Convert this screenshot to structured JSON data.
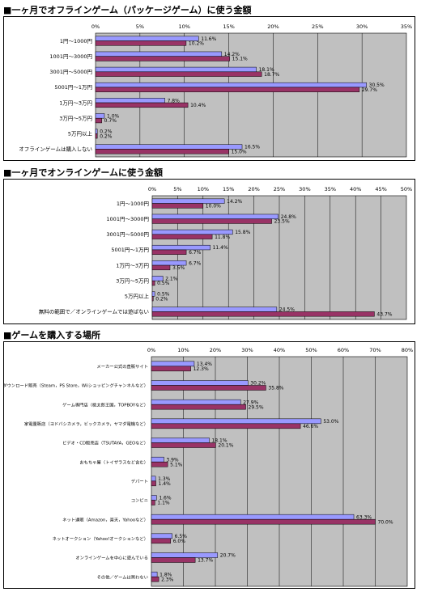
{
  "chart_data": [
    {
      "type": "bar",
      "title": "■一ヶ月でオフラインゲーム（パッケージゲーム）に使う金額",
      "orientation": "horizontal",
      "categories": [
        "1円～1000円",
        "1001円～3000円",
        "3001円～5000円",
        "5001円～1万円",
        "1万円～3万円",
        "3万円～5万円",
        "5万円以上",
        "オフラインゲームは購入しない"
      ],
      "series": [
        {
          "values": [
            11.6,
            14.2,
            18.1,
            30.5,
            7.8,
            1.0,
            0.2,
            16.5
          ],
          "labels": [
            "11.6%",
            "14.2%",
            "18.1%",
            "30.5%",
            "7.8%",
            "1.0%",
            "0.2%",
            "16.5%"
          ],
          "color": "#9999ff"
        },
        {
          "values": [
            10.2,
            15.1,
            18.7,
            29.7,
            10.4,
            0.7,
            0.2,
            15.0
          ],
          "labels": [
            "10.2%",
            "15.1%",
            "18.7%",
            "29.7%",
            "10.4%",
            "0.7%",
            "0.2%",
            "15.0%"
          ],
          "color": "#993366"
        }
      ],
      "xlim": [
        0,
        35
      ],
      "ticks": [
        "0%",
        "5%",
        "10%",
        "15%",
        "20%",
        "25%",
        "30%",
        "35%"
      ],
      "plot_background": "#c0c0c0",
      "grid": true
    },
    {
      "type": "bar",
      "title": "■一ヶ月でオンラインゲームに使う金額",
      "orientation": "horizontal",
      "categories": [
        "1円～1000円",
        "1001円～3000円",
        "3001円～5000円",
        "5001円～1万円",
        "1万円～3万円",
        "3万円～5万円",
        "5万円以上",
        "無料の範囲で／オンラインゲームでは遊ばない"
      ],
      "series": [
        {
          "values": [
            14.2,
            24.8,
            15.8,
            11.4,
            6.7,
            2.1,
            0.5,
            24.5
          ],
          "labels": [
            "14.2%",
            "24.8%",
            "15.8%",
            "11.4%",
            "6.7%",
            "2.1%",
            "0.5%",
            "24.5%"
          ],
          "color": "#9999ff"
        },
        {
          "values": [
            10.0,
            23.5,
            11.8,
            6.7,
            3.5,
            0.5,
            0.2,
            43.7
          ],
          "labels": [
            "10.0%",
            "23.5%",
            "11.8%",
            "6.7%",
            "3.5%",
            "0.5%",
            "0.2%",
            "43.7%"
          ],
          "color": "#993366"
        }
      ],
      "xlim": [
        0,
        50
      ],
      "ticks": [
        "0%",
        "5%",
        "10%",
        "15%",
        "20%",
        "25%",
        "30%",
        "35%",
        "40%",
        "45%",
        "50%"
      ],
      "plot_background": "#c0c0c0",
      "grid": true
    },
    {
      "type": "bar",
      "title": "■ゲームを購入する場所",
      "orientation": "horizontal",
      "categories": [
        "メーカー公式の直販サイト",
        "ダウンロード販売（Steam，PS Store，Wiiショッピングチャンネルなど）",
        "ゲーム専門店（桃太郎王国，TOPBOYなど）",
        "家電量販店（ヨドバシカメラ，ビックカメラ，ヤマダ電機など）",
        "ビデオ・CD販売店（TSUTAYA，GEOなど）",
        "おもちゃ屋（トイザラスなど含む）",
        "デパート",
        "コンビニ",
        "ネット通販（Amazon，楽天，Yahooなど）",
        "ネットオークション（Yahoo!オークションなど）",
        "オンラインゲームを中心に遊んでいる",
        "その他／ゲームは買わない"
      ],
      "series": [
        {
          "values": [
            13.4,
            30.2,
            27.9,
            53.0,
            18.1,
            3.9,
            1.3,
            1.6,
            63.3,
            6.5,
            20.7,
            1.8
          ],
          "labels": [
            "13.4%",
            "30.2%",
            "27.9%",
            "53.0%",
            "18.1%",
            "3.9%",
            "1.3%",
            "1.6%",
            "63.3%",
            "6.5%",
            "20.7%",
            "1.8%"
          ],
          "color": "#9999ff"
        },
        {
          "values": [
            12.3,
            35.8,
            29.5,
            46.6,
            20.1,
            5.1,
            1.4,
            1.1,
            70.0,
            6.0,
            13.7,
            2.3
          ],
          "labels": [
            "12.3%",
            "35.8%",
            "29.5%",
            "46.6%",
            "20.1%",
            "5.1%",
            "1.4%",
            "1.1%",
            "70.0%",
            "6.0%",
            "13.7%",
            "2.3%"
          ],
          "color": "#993366"
        }
      ],
      "xlim": [
        0,
        80
      ],
      "ticks": [
        "0%",
        "10%",
        "20%",
        "30%",
        "40%",
        "50%",
        "60%",
        "70%",
        "80%"
      ],
      "plot_background": "#c0c0c0",
      "grid": true
    }
  ]
}
